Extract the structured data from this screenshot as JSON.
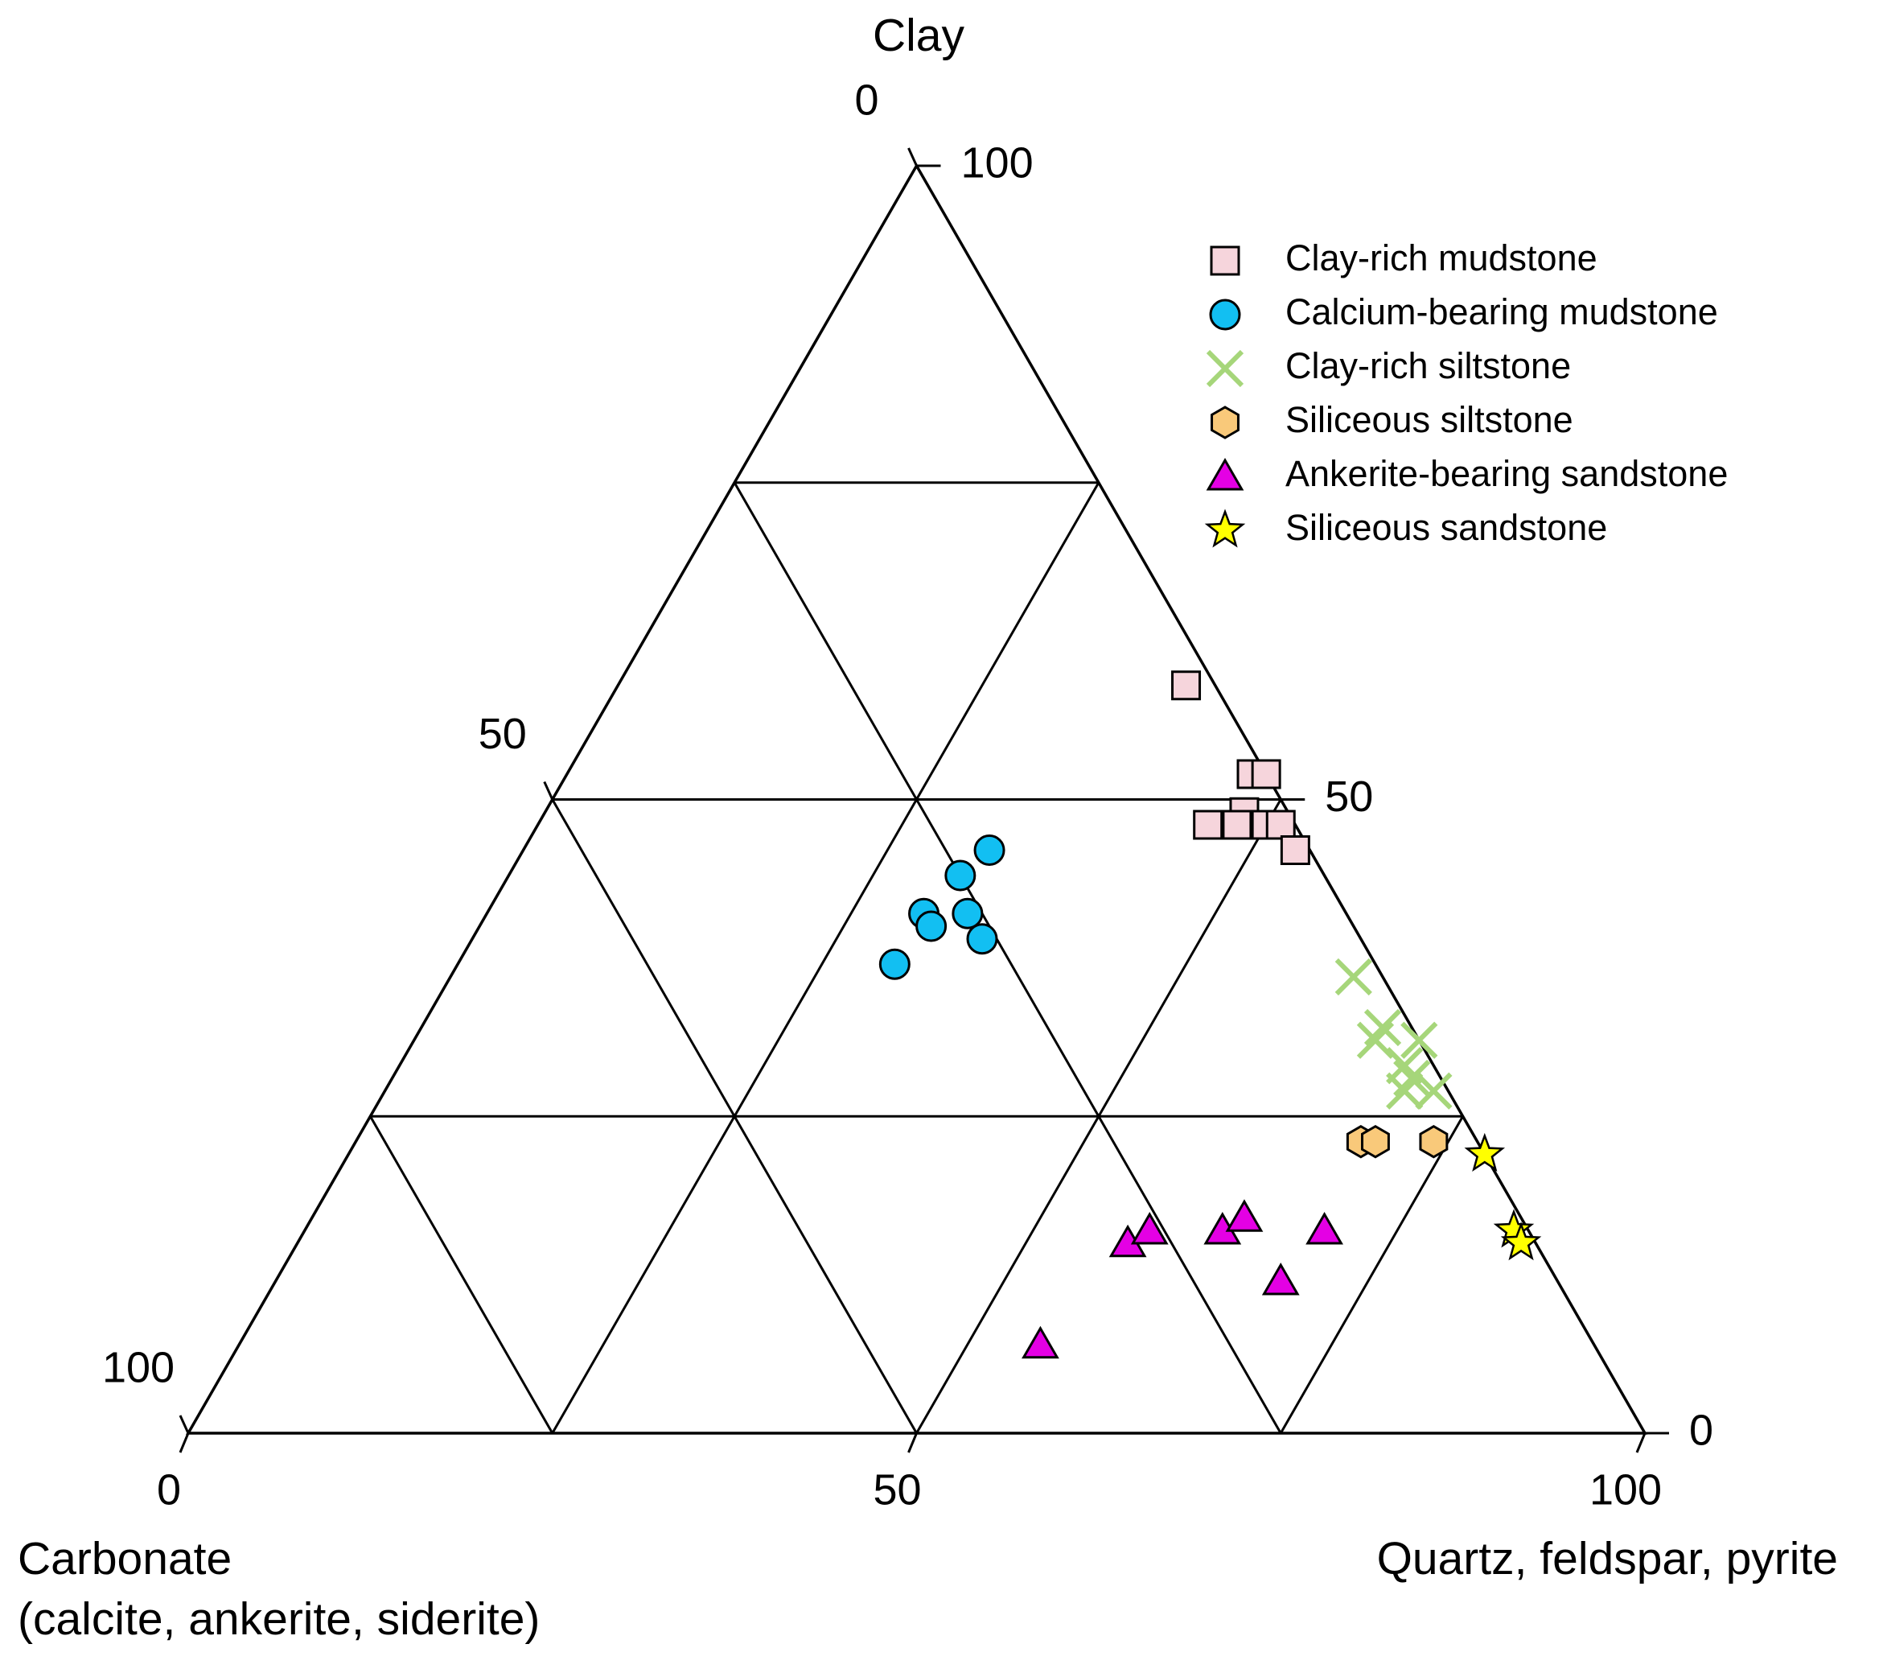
{
  "chart_data": {
    "type": "ternary",
    "axes": {
      "clay": {
        "label": "Clay",
        "ticks": [
          50,
          100,
          0
        ]
      },
      "carbonate": {
        "label": [
          "Carbonate",
          "(calcite, ankerite, siderite)"
        ],
        "ticks": [
          0,
          50,
          100
        ]
      },
      "quartz": {
        "label": "Quartz, feldspar, pyrite",
        "ticks": [
          0,
          50,
          100
        ]
      }
    },
    "grid": [
      25,
      50,
      75
    ],
    "series": [
      {
        "name": "Clay-rich mudstone",
        "marker": "square",
        "color": "#f6d5dc",
        "clay": [
          59,
          52,
          52,
          49,
          48,
          48,
          48,
          48,
          46
        ],
        "quartz": [
          39,
          47,
          48,
          48,
          46,
          48,
          50,
          51,
          53
        ],
        "carbonate": [
          2,
          1,
          0,
          3,
          6,
          4,
          2,
          1,
          1
        ]
      },
      {
        "name": "Calcium-bearing mudstone",
        "marker": "circle",
        "color": "#12bff2",
        "clay": [
          46,
          44,
          41,
          40,
          41,
          39,
          37
        ],
        "quartz": [
          32,
          31,
          30,
          31,
          33,
          35,
          30
        ],
        "carbonate": [
          22,
          25,
          29,
          29,
          26,
          26,
          33
        ]
      },
      {
        "name": "Clay-rich siltstone",
        "marker": "x",
        "color": "#a6d67a",
        "clay": [
          36,
          31,
          32,
          31,
          29,
          28,
          27,
          27
        ],
        "quartz": [
          62,
          66,
          66,
          69,
          69,
          70,
          72,
          70
        ],
        "carbonate": [
          2,
          3,
          2,
          0,
          2,
          2,
          1,
          3
        ]
      },
      {
        "name": "Siliceous siltstone",
        "marker": "hexagon",
        "color": "#f9c97a",
        "clay": [
          23,
          23,
          23
        ],
        "quartz": [
          69,
          70,
          74
        ],
        "carbonate": [
          8,
          7,
          3
        ]
      },
      {
        "name": "Ankerite-bearing sandstone",
        "marker": "triangle",
        "color": "#e400e4",
        "clay": [
          15,
          16,
          16,
          17,
          16,
          12,
          7
        ],
        "quartz": [
          57,
          58,
          63,
          64,
          70,
          69,
          55
        ],
        "carbonate": [
          28,
          26,
          21,
          19,
          14,
          19,
          38
        ]
      },
      {
        "name": "Siliceous sandstone",
        "marker": "star",
        "color": "#ffff00",
        "clay": [
          22,
          16,
          15
        ],
        "quartz": [
          78,
          83,
          84
        ],
        "carbonate": [
          0,
          1,
          1
        ]
      }
    ]
  }
}
